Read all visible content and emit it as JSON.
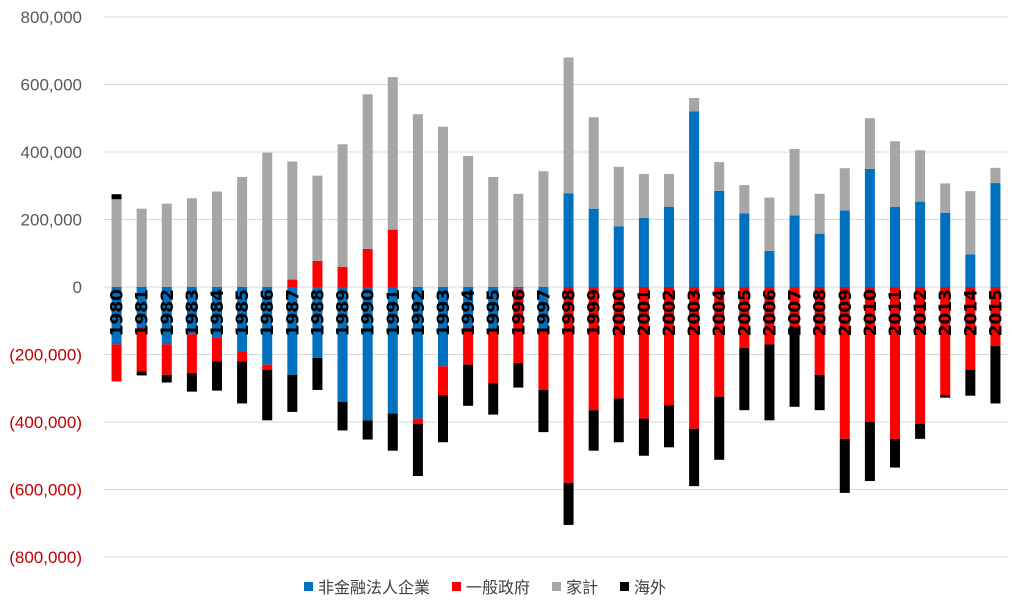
{
  "chart_data": {
    "type": "bar",
    "stacked": true,
    "title": "",
    "xlabel": "",
    "ylabel": "",
    "ylim": [
      -800000,
      800000
    ],
    "yticks": [
      {
        "value": 800000,
        "label": "800,000"
      },
      {
        "value": 600000,
        "label": "600,000"
      },
      {
        "value": 400000,
        "label": "400,000"
      },
      {
        "value": 200000,
        "label": "200,000"
      },
      {
        "value": 0,
        "label": "0"
      },
      {
        "value": -200000,
        "label": "(200,000)"
      },
      {
        "value": -400000,
        "label": "(400,000)"
      },
      {
        "value": -600000,
        "label": "(600,000)"
      },
      {
        "value": -800000,
        "label": "(800,000)"
      }
    ],
    "negative_tick_color": "#c00000",
    "positive_tick_color": "#595959",
    "grid": true,
    "legend_position": "bottom",
    "categories": [
      "1980",
      "1981",
      "1982",
      "1983",
      "1984",
      "1985",
      "1986",
      "1987",
      "1988",
      "1989",
      "1990",
      "1991",
      "1992",
      "1993",
      "1994",
      "1995",
      "1996",
      "1997",
      "1998",
      "1999",
      "2000",
      "2001",
      "2002",
      "2003",
      "2004",
      "2005",
      "2006",
      "2007",
      "2008",
      "2009",
      "2010",
      "2011",
      "2012",
      "2013",
      "2014",
      "2015"
    ],
    "series": [
      {
        "name": "非金融法人企業",
        "color": "#0070c0",
        "values": [
          -170000,
          -120000,
          -170000,
          -140000,
          -150000,
          -190000,
          -230000,
          -260000,
          -210000,
          -340000,
          -395000,
          -375000,
          -390000,
          -235000,
          -120000,
          -125000,
          -5000,
          -130000,
          278000,
          232000,
          180000,
          205000,
          238000,
          520000,
          285000,
          218000,
          107000,
          212000,
          158000,
          227000,
          350000,
          237000,
          253000,
          220000,
          97000,
          308000
        ]
      },
      {
        "name": "一般政府",
        "color": "#ff0000",
        "values": [
          -110000,
          -130000,
          -90000,
          -115000,
          -70000,
          -30000,
          -15000,
          22000,
          77000,
          60000,
          113000,
          170000,
          -15000,
          -85000,
          -110000,
          -160000,
          -220000,
          -175000,
          -580000,
          -365000,
          -330000,
          -390000,
          -350000,
          -420000,
          -325000,
          -180000,
          -170000,
          -120000,
          -260000,
          -450000,
          -400000,
          -450000,
          -405000,
          -320000,
          -245000,
          -175000
        ]
      },
      {
        "name": "家計",
        "color": "#a6a6a6",
        "values": [
          260000,
          232000,
          247000,
          263000,
          283000,
          326000,
          398000,
          350000,
          253000,
          363000,
          458000,
          452000,
          512000,
          475000,
          388000,
          326000,
          276000,
          343000,
          402000,
          271000,
          176000,
          130000,
          97000,
          40000,
          85000,
          84000,
          158000,
          197000,
          118000,
          125000,
          150000,
          195000,
          152000,
          87000,
          187000,
          45000
        ]
      },
      {
        "name": "海外",
        "color": "#000000",
        "values": [
          15000,
          -12000,
          -23000,
          -55000,
          -87000,
          -125000,
          -150000,
          -110000,
          -95000,
          -85000,
          -57000,
          -110000,
          -155000,
          -140000,
          -122000,
          -93000,
          -73000,
          -125000,
          -125000,
          -120000,
          -130000,
          -110000,
          -125000,
          -170000,
          -187000,
          -185000,
          -225000,
          -235000,
          -105000,
          -160000,
          -175000,
          -85000,
          -45000,
          -8000,
          -77000,
          -170000
        ]
      }
    ]
  },
  "legend": {
    "items": [
      {
        "label": "非金融法人企業",
        "color": "#0070c0"
      },
      {
        "label": "一般政府",
        "color": "#ff0000"
      },
      {
        "label": "家計",
        "color": "#a6a6a6"
      },
      {
        "label": "海外",
        "color": "#000000"
      }
    ]
  }
}
